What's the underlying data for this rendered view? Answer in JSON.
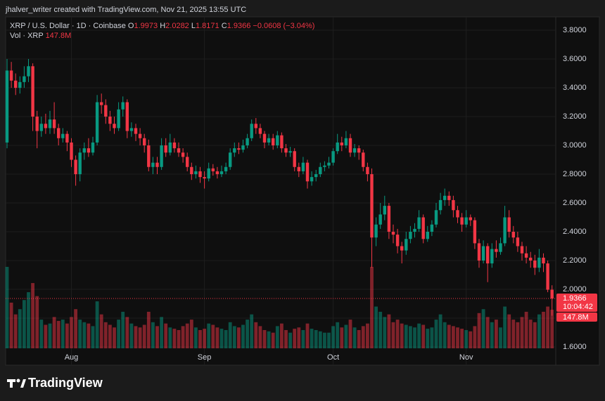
{
  "header": {
    "attribution": "jhalver_writer created with TradingView.com, Nov 21, 2025 13:55 UTC"
  },
  "footer": {
    "logo": "TradingView"
  },
  "chart_data": {
    "type": "candlestick",
    "title": "XRP / U.S. Dollar · 1D · Coinbase",
    "legend_keys": [
      "O",
      "H",
      "L",
      "C"
    ],
    "change": "−0.0608 (−3.04%)",
    "volume_title": "Vol · XRP",
    "volume_last_label": "147.8M",
    "countdown": "10:04:42",
    "up_color": "#089981",
    "down_color": "#f23645",
    "grid": true,
    "ylim": [
      1.473,
      3.893
    ],
    "yticks": [
      {
        "value": 1.6,
        "label": "1.6000"
      },
      {
        "value": 1.8,
        "label": "1.8000"
      },
      {
        "value": 2.0,
        "label": "2.0000"
      },
      {
        "value": 2.2,
        "label": "2.2000"
      },
      {
        "value": 2.4,
        "label": "2.4000"
      },
      {
        "value": 2.6,
        "label": "2.6000"
      },
      {
        "value": 2.8,
        "label": "2.8000"
      },
      {
        "value": 3.0,
        "label": "3.0000"
      },
      {
        "value": 3.2,
        "label": "3.2000"
      },
      {
        "value": 3.4,
        "label": "3.4000"
      },
      {
        "value": 3.6,
        "label": "3.6000"
      },
      {
        "value": 3.8,
        "label": "3.8000"
      }
    ],
    "categories": [
      null,
      null,
      null,
      null,
      null,
      null,
      null,
      null,
      null,
      null,
      null,
      null,
      null,
      null,
      null,
      "Aug",
      null,
      null,
      null,
      null,
      null,
      null,
      null,
      null,
      null,
      null,
      null,
      null,
      null,
      null,
      null,
      null,
      null,
      null,
      null,
      null,
      null,
      null,
      null,
      null,
      null,
      null,
      null,
      null,
      null,
      null,
      "Sep",
      null,
      null,
      null,
      null,
      null,
      null,
      null,
      null,
      null,
      null,
      null,
      null,
      null,
      null,
      null,
      null,
      null,
      null,
      null,
      null,
      null,
      null,
      null,
      null,
      null,
      null,
      null,
      null,
      null,
      "Oct",
      null,
      null,
      null,
      null,
      null,
      null,
      null,
      null,
      null,
      null,
      null,
      null,
      null,
      null,
      null,
      null,
      null,
      null,
      null,
      null,
      null,
      null,
      null,
      null,
      null,
      null,
      null,
      null,
      null,
      null,
      "Nov",
      null,
      null,
      null,
      null,
      null,
      null,
      null,
      null,
      null,
      null,
      null,
      null,
      null,
      null,
      null,
      null,
      null,
      null,
      null,
      null
    ],
    "ohlc": [
      [
        3.02,
        3.6,
        2.98,
        3.52
      ],
      [
        3.52,
        3.58,
        3.4,
        3.45
      ],
      [
        3.45,
        3.5,
        3.35,
        3.4
      ],
      [
        3.4,
        3.48,
        3.36,
        3.44
      ],
      [
        3.44,
        3.55,
        3.4,
        3.48
      ],
      [
        3.48,
        3.6,
        3.44,
        3.55
      ],
      [
        3.55,
        3.57,
        3.1,
        3.2
      ],
      [
        3.2,
        3.24,
        2.98,
        3.1
      ],
      [
        3.1,
        3.2,
        3.06,
        3.15
      ],
      [
        3.15,
        3.22,
        3.08,
        3.12
      ],
      [
        3.12,
        3.24,
        3.08,
        3.18
      ],
      [
        3.18,
        3.3,
        3.08,
        3.12
      ],
      [
        3.12,
        3.15,
        3.0,
        3.05
      ],
      [
        3.05,
        3.12,
        3.02,
        3.08
      ],
      [
        3.08,
        3.1,
        2.96,
        3.02
      ],
      [
        3.02,
        3.05,
        2.85,
        2.9
      ],
      [
        2.9,
        2.93,
        2.72,
        2.8
      ],
      [
        2.8,
        2.98,
        2.75,
        2.95
      ],
      [
        2.95,
        3.02,
        2.9,
        2.98
      ],
      [
        2.98,
        3.05,
        2.92,
        2.95
      ],
      [
        2.95,
        3.06,
        2.93,
        3.02
      ],
      [
        3.02,
        3.35,
        3.0,
        3.3
      ],
      [
        3.3,
        3.36,
        3.22,
        3.28
      ],
      [
        3.28,
        3.32,
        3.15,
        3.2
      ],
      [
        3.2,
        3.24,
        3.1,
        3.15
      ],
      [
        3.15,
        3.2,
        3.08,
        3.12
      ],
      [
        3.12,
        3.3,
        3.1,
        3.25
      ],
      [
        3.25,
        3.34,
        3.2,
        3.3
      ],
      [
        3.3,
        3.32,
        3.05,
        3.1
      ],
      [
        3.1,
        3.16,
        3.06,
        3.12
      ],
      [
        3.12,
        3.15,
        3.03,
        3.08
      ],
      [
        3.08,
        3.12,
        3.0,
        3.05
      ],
      [
        3.05,
        3.08,
        2.95,
        3.0
      ],
      [
        3.0,
        3.04,
        2.82,
        2.85
      ],
      [
        2.85,
        2.92,
        2.8,
        2.88
      ],
      [
        2.88,
        2.92,
        2.8,
        2.85
      ],
      [
        2.85,
        3.05,
        2.83,
        3.0
      ],
      [
        3.0,
        3.05,
        2.92,
        2.95
      ],
      [
        2.95,
        3.08,
        2.93,
        3.02
      ],
      [
        3.02,
        3.05,
        2.95,
        2.98
      ],
      [
        2.98,
        3.02,
        2.92,
        2.95
      ],
      [
        2.95,
        2.98,
        2.88,
        2.92
      ],
      [
        2.92,
        2.95,
        2.82,
        2.85
      ],
      [
        2.85,
        2.88,
        2.76,
        2.8
      ],
      [
        2.8,
        2.86,
        2.77,
        2.82
      ],
      [
        2.82,
        2.85,
        2.74,
        2.78
      ],
      [
        2.78,
        2.82,
        2.7,
        2.77
      ],
      [
        2.77,
        2.88,
        2.75,
        2.84
      ],
      [
        2.84,
        2.87,
        2.79,
        2.82
      ],
      [
        2.82,
        2.85,
        2.77,
        2.8
      ],
      [
        2.8,
        2.86,
        2.78,
        2.82
      ],
      [
        2.82,
        2.88,
        2.8,
        2.85
      ],
      [
        2.85,
        2.98,
        2.83,
        2.95
      ],
      [
        2.95,
        3.02,
        2.92,
        2.98
      ],
      [
        2.98,
        3.02,
        2.94,
        2.97
      ],
      [
        2.97,
        3.04,
        2.95,
        3.0
      ],
      [
        3.0,
        3.08,
        2.98,
        3.05
      ],
      [
        3.05,
        3.18,
        3.03,
        3.15
      ],
      [
        3.15,
        3.19,
        3.08,
        3.12
      ],
      [
        3.12,
        3.15,
        3.05,
        3.08
      ],
      [
        3.08,
        3.1,
        2.98,
        3.02
      ],
      [
        3.02,
        3.08,
        3.0,
        3.05
      ],
      [
        3.05,
        3.08,
        2.97,
        3.0
      ],
      [
        3.0,
        3.1,
        2.98,
        3.07
      ],
      [
        3.07,
        3.09,
        2.95,
        2.98
      ],
      [
        2.98,
        3.01,
        2.92,
        2.95
      ],
      [
        2.95,
        2.99,
        2.92,
        2.96
      ],
      [
        2.96,
        2.98,
        2.82,
        2.85
      ],
      [
        2.85,
        2.88,
        2.78,
        2.82
      ],
      [
        2.82,
        2.92,
        2.8,
        2.88
      ],
      [
        2.88,
        2.9,
        2.7,
        2.75
      ],
      [
        2.75,
        2.82,
        2.72,
        2.78
      ],
      [
        2.78,
        2.83,
        2.75,
        2.8
      ],
      [
        2.8,
        2.88,
        2.78,
        2.85
      ],
      [
        2.85,
        2.89,
        2.82,
        2.86
      ],
      [
        2.86,
        2.92,
        2.84,
        2.88
      ],
      [
        2.88,
        2.98,
        2.86,
        2.96
      ],
      [
        2.96,
        3.08,
        2.94,
        3.02
      ],
      [
        3.02,
        3.06,
        2.96,
        3.0
      ],
      [
        3.0,
        3.1,
        2.98,
        3.05
      ],
      [
        3.05,
        3.08,
        2.92,
        2.95
      ],
      [
        2.95,
        3.01,
        2.92,
        2.98
      ],
      [
        2.98,
        3.0,
        2.9,
        2.95
      ],
      [
        2.95,
        2.97,
        2.82,
        2.85
      ],
      [
        2.85,
        2.88,
        2.75,
        2.8
      ],
      [
        2.8,
        2.84,
        2.15,
        2.36
      ],
      [
        2.36,
        2.5,
        2.3,
        2.45
      ],
      [
        2.45,
        2.6,
        2.42,
        2.52
      ],
      [
        2.52,
        2.65,
        2.48,
        2.58
      ],
      [
        2.58,
        2.6,
        2.35,
        2.4
      ],
      [
        2.4,
        2.45,
        2.32,
        2.38
      ],
      [
        2.38,
        2.42,
        2.25,
        2.3
      ],
      [
        2.3,
        2.33,
        2.18,
        2.27
      ],
      [
        2.27,
        2.4,
        2.24,
        2.35
      ],
      [
        2.35,
        2.44,
        2.32,
        2.4
      ],
      [
        2.4,
        2.46,
        2.36,
        2.42
      ],
      [
        2.42,
        2.55,
        2.4,
        2.5
      ],
      [
        2.5,
        2.52,
        2.32,
        2.35
      ],
      [
        2.35,
        2.44,
        2.33,
        2.4
      ],
      [
        2.4,
        2.48,
        2.37,
        2.45
      ],
      [
        2.45,
        2.6,
        2.43,
        2.55
      ],
      [
        2.55,
        2.67,
        2.52,
        2.62
      ],
      [
        2.62,
        2.7,
        2.58,
        2.65
      ],
      [
        2.65,
        2.68,
        2.58,
        2.62
      ],
      [
        2.62,
        2.65,
        2.5,
        2.55
      ],
      [
        2.55,
        2.58,
        2.46,
        2.5
      ],
      [
        2.5,
        2.53,
        2.4,
        2.45
      ],
      [
        2.45,
        2.55,
        2.43,
        2.5
      ],
      [
        2.5,
        2.52,
        2.44,
        2.48
      ],
      [
        2.48,
        2.5,
        2.28,
        2.32
      ],
      [
        2.32,
        2.35,
        2.15,
        2.2
      ],
      [
        2.2,
        2.34,
        2.18,
        2.3
      ],
      [
        2.3,
        2.32,
        2.05,
        2.18
      ],
      [
        2.18,
        2.32,
        2.15,
        2.28
      ],
      [
        2.28,
        2.34,
        2.22,
        2.26
      ],
      [
        2.26,
        2.36,
        2.24,
        2.32
      ],
      [
        2.32,
        2.58,
        2.3,
        2.5
      ],
      [
        2.5,
        2.55,
        2.36,
        2.4
      ],
      [
        2.4,
        2.44,
        2.32,
        2.36
      ],
      [
        2.36,
        2.4,
        2.26,
        2.3
      ],
      [
        2.3,
        2.33,
        2.2,
        2.25
      ],
      [
        2.25,
        2.3,
        2.18,
        2.22
      ],
      [
        2.22,
        2.26,
        2.15,
        2.2
      ],
      [
        2.2,
        2.24,
        2.1,
        2.15
      ],
      [
        2.15,
        2.28,
        2.12,
        2.22
      ],
      [
        2.22,
        2.25,
        2.12,
        2.18
      ],
      [
        2.18,
        2.2,
        1.98,
        1.9973
      ],
      [
        1.9973,
        2.0282,
        1.8171,
        1.9366
      ]
    ],
    "volumes": [
      312000000,
      175000000,
      130000000,
      150000000,
      185000000,
      215000000,
      250000000,
      200000000,
      110000000,
      90000000,
      95000000,
      120000000,
      105000000,
      110000000,
      95000000,
      120000000,
      150000000,
      110000000,
      100000000,
      95000000,
      85000000,
      180000000,
      130000000,
      100000000,
      90000000,
      80000000,
      110000000,
      140000000,
      120000000,
      95000000,
      85000000,
      80000000,
      90000000,
      140000000,
      100000000,
      85000000,
      120000000,
      95000000,
      80000000,
      75000000,
      70000000,
      85000000,
      95000000,
      110000000,
      80000000,
      70000000,
      75000000,
      95000000,
      90000000,
      80000000,
      75000000,
      70000000,
      100000000,
      85000000,
      80000000,
      90000000,
      110000000,
      130000000,
      100000000,
      85000000,
      70000000,
      65000000,
      60000000,
      85000000,
      95000000,
      70000000,
      60000000,
      75000000,
      80000000,
      70000000,
      95000000,
      75000000,
      70000000,
      65000000,
      60000000,
      60000000,
      85000000,
      100000000,
      80000000,
      90000000,
      110000000,
      80000000,
      70000000,
      85000000,
      95000000,
      312000000,
      160000000,
      140000000,
      120000000,
      130000000,
      100000000,
      110000000,
      95000000,
      90000000,
      85000000,
      80000000,
      95000000,
      90000000,
      75000000,
      80000000,
      110000000,
      130000000,
      100000000,
      90000000,
      85000000,
      80000000,
      75000000,
      70000000,
      65000000,
      85000000,
      135000000,
      150000000,
      120000000,
      100000000,
      110000000,
      80000000,
      160000000,
      130000000,
      110000000,
      100000000,
      120000000,
      140000000,
      110000000,
      100000000,
      130000000,
      140000000,
      160000000,
      147800000
    ]
  }
}
